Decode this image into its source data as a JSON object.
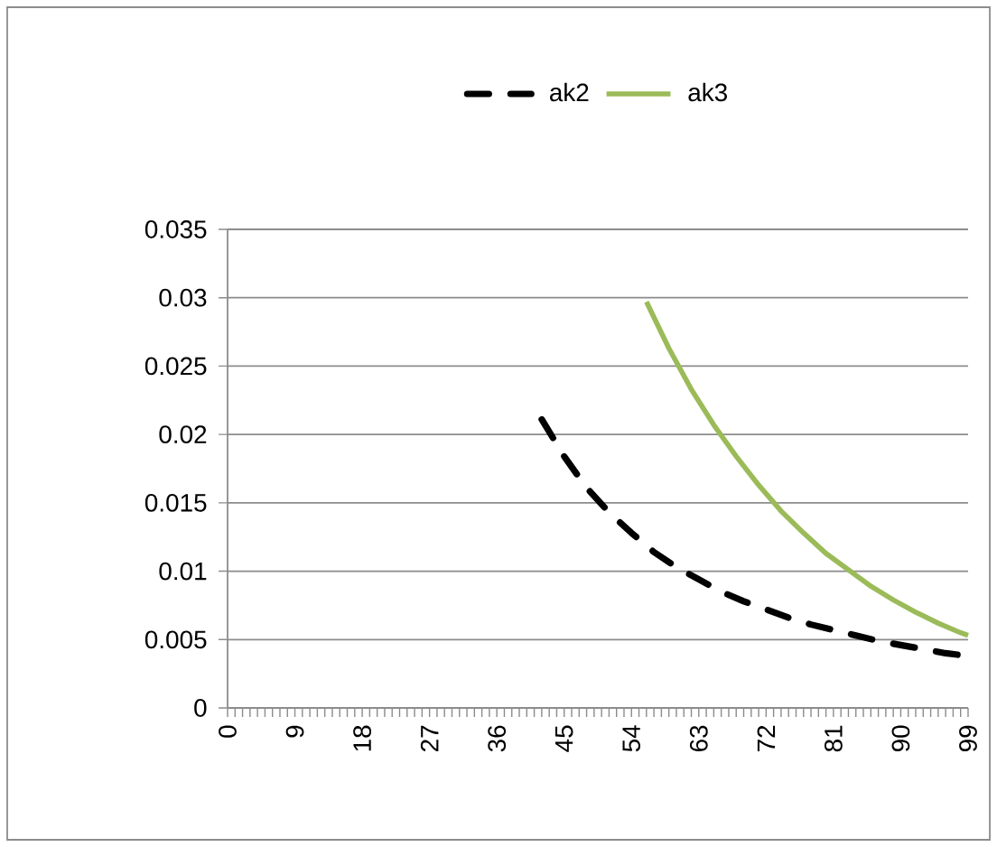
{
  "chart_data": {
    "type": "line",
    "xlim": [
      0,
      99
    ],
    "xticks": [
      0,
      9,
      18,
      27,
      36,
      45,
      54,
      63,
      72,
      81,
      90,
      99
    ],
    "ylim": [
      0,
      0.035
    ],
    "yticks": [
      0,
      0.005,
      0.01,
      0.015,
      0.02,
      0.025,
      0.03,
      0.035
    ],
    "grid": "y",
    "legend": "top",
    "marker": "none",
    "series": [
      {
        "name": "ak2",
        "color": "#000000",
        "line_style": "dashed",
        "x": [
          42,
          45,
          48,
          51,
          54,
          57,
          60,
          63,
          66,
          69,
          72,
          75,
          78,
          81,
          84,
          87,
          90,
          93,
          96,
          99
        ],
        "values": [
          0.0211,
          0.0184,
          0.0161,
          0.0143,
          0.0128,
          0.0114,
          0.0103,
          0.0094,
          0.0085,
          0.0078,
          0.0072,
          0.0066,
          0.0061,
          0.0057,
          0.0053,
          0.0049,
          0.0046,
          0.0043,
          0.004,
          0.0038
        ]
      },
      {
        "name": "ak3",
        "color": "#9bbb59",
        "line_style": "solid",
        "x": [
          56,
          59,
          62,
          65,
          68,
          71,
          74,
          77,
          80,
          83,
          86,
          89,
          92,
          95,
          98,
          99
        ],
        "values": [
          0.0297,
          0.0263,
          0.0233,
          0.0207,
          0.0184,
          0.0163,
          0.0144,
          0.0128,
          0.0113,
          0.0101,
          0.0089,
          0.0079,
          0.007,
          0.0062,
          0.0055,
          0.0053
        ]
      }
    ]
  }
}
